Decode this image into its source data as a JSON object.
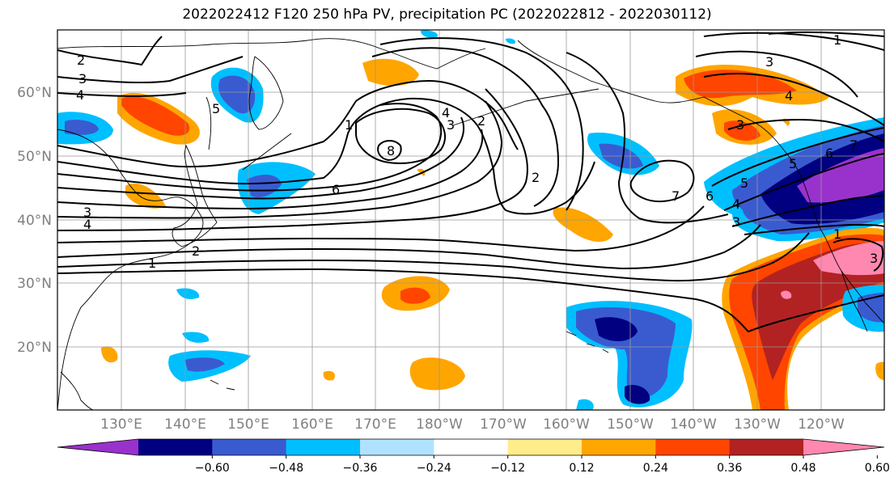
{
  "title": "2022022412 F120 250 hPa PV, precipitation PC (2022022812 - 2022030112)",
  "lat_labels": [
    "60°N",
    "50°N",
    "40°N",
    "30°N",
    "20°N"
  ],
  "lon_labels": [
    "130°E",
    "140°E",
    "150°E",
    "160°E",
    "170°E",
    "180°W",
    "170°W",
    "160°W",
    "150°W",
    "140°W",
    "130°W",
    "120°W"
  ],
  "colorbar": {
    "colors": [
      "#9932cc",
      "#000080",
      "#3a5bd0",
      "#00bfff",
      "#b0e2ff",
      "#ffffff",
      "#ffec8b",
      "#ffa500",
      "#ff4500",
      "#b22222",
      "#ff88b0"
    ],
    "tick_labels": [
      "−0.60",
      "−0.48",
      "−0.36",
      "−0.24",
      "−0.12",
      "0.12",
      "0.24",
      "0.36",
      "0.48",
      "0.60"
    ]
  },
  "contour_labels": [
    "2",
    "3",
    "4",
    "1",
    "2",
    "3",
    "4",
    "1",
    "5",
    "4",
    "3",
    "2",
    "8",
    "6",
    "2",
    "7",
    "6",
    "5",
    "4",
    "3",
    "3",
    "4",
    "3",
    "1",
    "5",
    "6",
    "7",
    "1",
    "3"
  ]
}
